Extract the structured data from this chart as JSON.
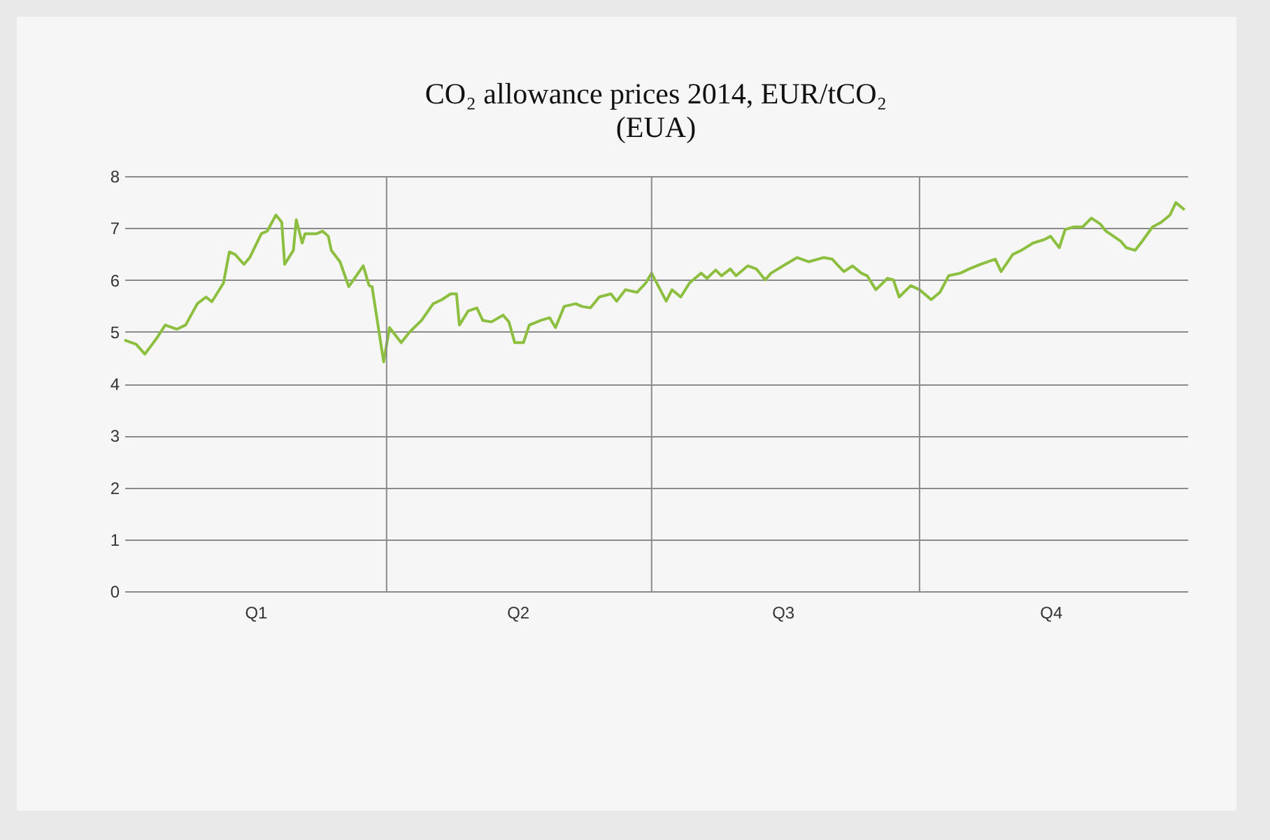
{
  "chart_data": {
    "type": "line",
    "title": "CO₂ allowance prices 2014, EUR/tCO₂",
    "subtitle": "(EUA)",
    "x": [
      "2014-01-01",
      "2014-01-05",
      "2014-01-08",
      "2014-01-12",
      "2014-01-15",
      "2014-01-19",
      "2014-01-22",
      "2014-01-26",
      "2014-01-29",
      "2014-01-31",
      "2014-02-04",
      "2014-02-06",
      "2014-02-08",
      "2014-02-11",
      "2014-02-13",
      "2014-02-17",
      "2014-02-19",
      "2014-02-22",
      "2014-02-24",
      "2014-02-25",
      "2014-02-28",
      "2014-03-01",
      "2014-03-03",
      "2014-03-04",
      "2014-03-08",
      "2014-03-10",
      "2014-03-12",
      "2014-03-13",
      "2014-03-16",
      "2014-03-19",
      "2014-03-21",
      "2014-03-24",
      "2014-03-26",
      "2014-03-27",
      "2014-03-31",
      "2014-04-02",
      "2014-04-06",
      "2014-04-09",
      "2014-04-13",
      "2014-04-17",
      "2014-04-20",
      "2014-04-23",
      "2014-04-25",
      "2014-04-26",
      "2014-04-29",
      "2014-05-02",
      "2014-05-04",
      "2014-05-07",
      "2014-05-11",
      "2014-05-13",
      "2014-05-15",
      "2014-05-18",
      "2014-05-20",
      "2014-05-24",
      "2014-05-27",
      "2014-05-29",
      "2014-06-01",
      "2014-06-05",
      "2014-06-07",
      "2014-06-10",
      "2014-06-13",
      "2014-06-17",
      "2014-06-19",
      "2014-06-22",
      "2014-06-26",
      "2014-06-29",
      "2014-07-01",
      "2014-07-06",
      "2014-07-08",
      "2014-07-11",
      "2014-07-14",
      "2014-07-18",
      "2014-07-20",
      "2014-07-23",
      "2014-07-25",
      "2014-07-28",
      "2014-07-30",
      "2014-08-03",
      "2014-08-06",
      "2014-08-09",
      "2014-08-11",
      "2014-08-16",
      "2014-08-20",
      "2014-08-24",
      "2014-08-29",
      "2014-09-01",
      "2014-09-05",
      "2014-09-08",
      "2014-09-11",
      "2014-09-13",
      "2014-09-16",
      "2014-09-20",
      "2014-09-22",
      "2014-09-24",
      "2014-09-28",
      "2014-10-01",
      "2014-10-05",
      "2014-10-08",
      "2014-10-11",
      "2014-10-15",
      "2014-10-18",
      "2014-10-22",
      "2014-10-27",
      "2014-10-29",
      "2014-11-02",
      "2014-11-05",
      "2014-11-09",
      "2014-11-13",
      "2014-11-15",
      "2014-11-18",
      "2014-11-20",
      "2014-11-23",
      "2014-11-26",
      "2014-11-29",
      "2014-12-02",
      "2014-12-04",
      "2014-12-09",
      "2014-12-11",
      "2014-12-14",
      "2014-12-16",
      "2014-12-20",
      "2014-12-23",
      "2014-12-26",
      "2014-12-28",
      "2014-12-31"
    ],
    "series": [
      {
        "color": "#8cbf3f",
        "values": [
          4.84,
          4.76,
          4.57,
          4.87,
          5.13,
          5.05,
          5.13,
          5.54,
          5.67,
          5.58,
          5.94,
          6.54,
          6.49,
          6.3,
          6.43,
          6.89,
          6.94,
          7.25,
          7.11,
          6.3,
          6.57,
          7.16,
          6.71,
          6.89,
          6.89,
          6.94,
          6.84,
          6.57,
          6.35,
          5.87,
          6.03,
          6.27,
          5.89,
          5.87,
          4.42,
          5.08,
          4.79,
          5.0,
          5.22,
          5.54,
          5.62,
          5.73,
          5.73,
          5.13,
          5.4,
          5.46,
          5.22,
          5.19,
          5.32,
          5.19,
          4.79,
          4.79,
          5.13,
          5.22,
          5.27,
          5.08,
          5.49,
          5.54,
          5.49,
          5.46,
          5.67,
          5.73,
          5.59,
          5.81,
          5.76,
          5.94,
          6.13,
          5.59,
          5.81,
          5.67,
          5.94,
          6.13,
          6.03,
          6.19,
          6.08,
          6.21,
          6.08,
          6.27,
          6.21,
          6.0,
          6.13,
          6.3,
          6.43,
          6.35,
          6.43,
          6.4,
          6.16,
          6.27,
          6.13,
          6.08,
          5.81,
          6.03,
          6.0,
          5.67,
          5.89,
          5.81,
          5.62,
          5.76,
          6.08,
          6.13,
          6.21,
          6.3,
          6.4,
          6.16,
          6.49,
          6.57,
          6.71,
          6.78,
          6.84,
          6.62,
          6.97,
          7.02,
          7.02,
          7.19,
          7.08,
          6.94,
          6.75,
          6.62,
          6.57,
          6.71,
          7.02,
          7.11,
          7.25,
          7.49,
          7.35
        ]
      }
    ],
    "xlim": [
      "2014-01-01",
      "2015-01-01"
    ],
    "xticks": [
      {
        "value": "2014-02-15",
        "label": "Q1"
      },
      {
        "value": "2014-05-16",
        "label": "Q2"
      },
      {
        "value": "2014-08-15",
        "label": "Q3"
      },
      {
        "value": "2014-11-15",
        "label": "Q4"
      }
    ],
    "ylim": [
      0,
      8
    ],
    "yticks": [
      0,
      1,
      2,
      3,
      4,
      5,
      6,
      7,
      8
    ],
    "grid": "y",
    "ref_lines": [
      {
        "axis": "x",
        "value": "2014-04-01",
        "color": "#8a8a8a"
      },
      {
        "axis": "x",
        "value": "2014-07-01",
        "color": "#8a8a8a"
      },
      {
        "axis": "x",
        "value": "2014-10-01",
        "color": "#8a8a8a"
      }
    ]
  }
}
